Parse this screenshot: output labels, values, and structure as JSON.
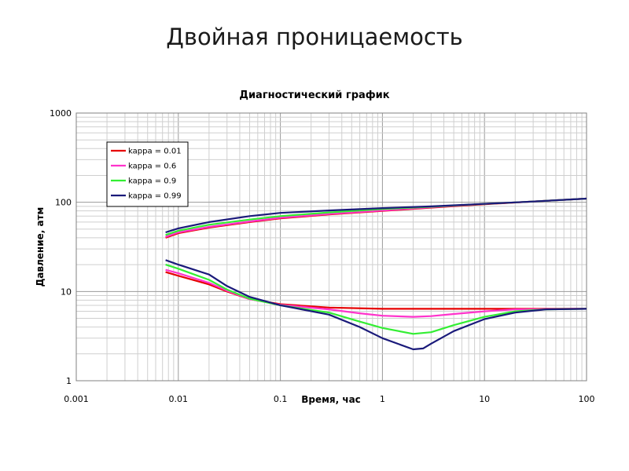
{
  "slide": {
    "title": "Двойная проницаемость"
  },
  "chart_data": {
    "type": "line",
    "title": "Диагностический график",
    "xlabel": "Время, час",
    "ylabel": "Давление, атм",
    "xscale": "log",
    "yscale": "log",
    "xlim": [
      0.001,
      100
    ],
    "ylim": [
      1,
      1000
    ],
    "x_ticks": [
      "0.001",
      "0.01",
      "0.1",
      "1",
      "10",
      "100"
    ],
    "y_ticks": [
      "1",
      "10",
      "100",
      "1000"
    ],
    "grid": true,
    "legend_position": "top-left",
    "series": [
      {
        "name": "kappa = 0.01",
        "color": "#e60000",
        "pressure": [
          [
            0.0075,
            40
          ],
          [
            0.01,
            45
          ],
          [
            0.02,
            52
          ],
          [
            0.05,
            60
          ],
          [
            0.1,
            66
          ],
          [
            0.3,
            73
          ],
          [
            1,
            80
          ],
          [
            3,
            87
          ],
          [
            10,
            95
          ],
          [
            30,
            102
          ],
          [
            100,
            110
          ]
        ],
        "derivative": [
          [
            0.0075,
            16.5
          ],
          [
            0.01,
            15
          ],
          [
            0.02,
            12
          ],
          [
            0.03,
            10
          ],
          [
            0.05,
            8.2
          ],
          [
            0.1,
            7.2
          ],
          [
            0.3,
            6.6
          ],
          [
            1,
            6.4
          ],
          [
            3,
            6.4
          ],
          [
            10,
            6.4
          ],
          [
            100,
            6.4
          ]
        ]
      },
      {
        "name": "kappa = 0.6",
        "color": "#ff33cc",
        "pressure": [
          [
            0.0075,
            41
          ],
          [
            0.01,
            46
          ],
          [
            0.02,
            53
          ],
          [
            0.05,
            61
          ],
          [
            0.1,
            67
          ],
          [
            0.3,
            74
          ],
          [
            1,
            81
          ],
          [
            3,
            88
          ],
          [
            10,
            96
          ],
          [
            30,
            102
          ],
          [
            100,
            110
          ]
        ],
        "derivative": [
          [
            0.0075,
            17.5
          ],
          [
            0.01,
            16
          ],
          [
            0.02,
            12.5
          ],
          [
            0.03,
            10.2
          ],
          [
            0.05,
            8.2
          ],
          [
            0.1,
            7.1
          ],
          [
            0.3,
            6.3
          ],
          [
            0.6,
            5.7
          ],
          [
            1,
            5.35
          ],
          [
            2,
            5.2
          ],
          [
            3,
            5.3
          ],
          [
            5,
            5.6
          ],
          [
            10,
            6.0
          ],
          [
            20,
            6.3
          ],
          [
            100,
            6.4
          ]
        ]
      },
      {
        "name": "kappa = 0.9",
        "color": "#33ee33",
        "pressure": [
          [
            0.0075,
            43
          ],
          [
            0.01,
            48
          ],
          [
            0.02,
            56
          ],
          [
            0.05,
            64
          ],
          [
            0.1,
            70
          ],
          [
            0.3,
            77
          ],
          [
            1,
            84
          ],
          [
            3,
            89
          ],
          [
            10,
            96
          ],
          [
            30,
            102
          ],
          [
            100,
            110
          ]
        ],
        "derivative": [
          [
            0.0075,
            20
          ],
          [
            0.01,
            18
          ],
          [
            0.02,
            13.5
          ],
          [
            0.03,
            10.5
          ],
          [
            0.05,
            8.3
          ],
          [
            0.1,
            7.0
          ],
          [
            0.3,
            5.8
          ],
          [
            0.6,
            4.6
          ],
          [
            1,
            3.9
          ],
          [
            2,
            3.35
          ],
          [
            3,
            3.5
          ],
          [
            5,
            4.2
          ],
          [
            10,
            5.2
          ],
          [
            20,
            6.0
          ],
          [
            40,
            6.3
          ],
          [
            100,
            6.4
          ]
        ]
      },
      {
        "name": "kappa = 0.99",
        "color": "#1a1a7a",
        "pressure": [
          [
            0.0075,
            46
          ],
          [
            0.01,
            51
          ],
          [
            0.02,
            60
          ],
          [
            0.05,
            70
          ],
          [
            0.1,
            76
          ],
          [
            0.3,
            81
          ],
          [
            1,
            86
          ],
          [
            3,
            90
          ],
          [
            10,
            96
          ],
          [
            30,
            102
          ],
          [
            100,
            110
          ]
        ],
        "derivative": [
          [
            0.0075,
            22.5
          ],
          [
            0.01,
            20
          ],
          [
            0.02,
            15.5
          ],
          [
            0.03,
            11.5
          ],
          [
            0.05,
            8.7
          ],
          [
            0.1,
            7.0
          ],
          [
            0.3,
            5.5
          ],
          [
            0.6,
            4.0
          ],
          [
            1,
            3.0
          ],
          [
            2,
            2.25
          ],
          [
            2.5,
            2.3
          ],
          [
            3,
            2.6
          ],
          [
            5,
            3.6
          ],
          [
            10,
            4.9
          ],
          [
            20,
            5.8
          ],
          [
            40,
            6.3
          ],
          [
            100,
            6.4
          ]
        ]
      }
    ]
  }
}
